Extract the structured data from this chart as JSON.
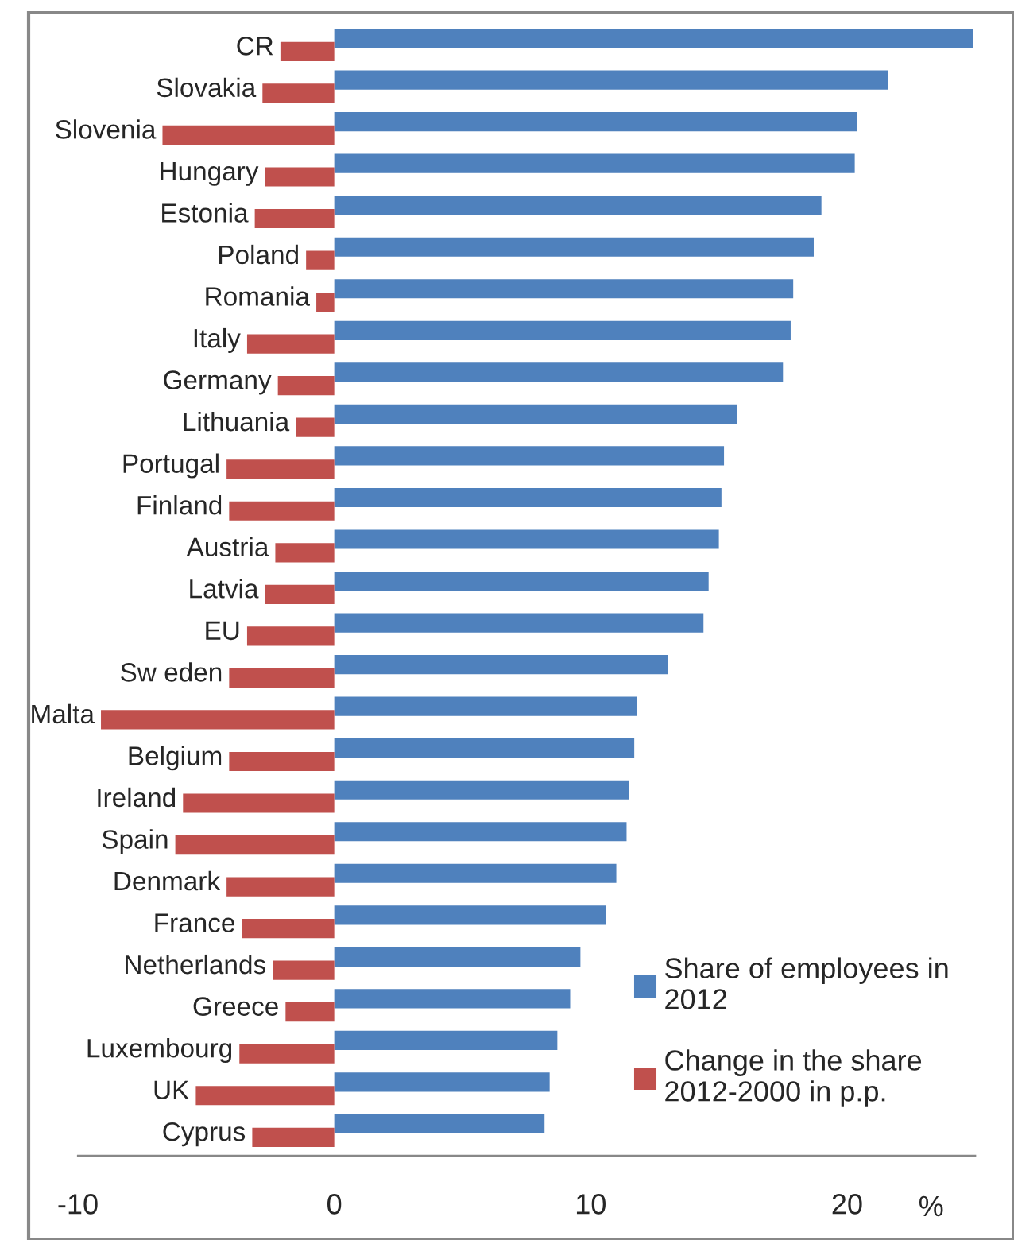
{
  "chart_data": {
    "type": "bar",
    "orientation": "horizontal",
    "xlabel": "%",
    "categories": [
      "CR",
      "Slovakia",
      "Slovenia",
      "Hungary",
      "Estonia",
      "Poland",
      "Romania",
      "Italy",
      "Germany",
      "Lithuania",
      "Portugal",
      "Finland",
      "Austria",
      "Latvia",
      "EU",
      "Sw eden",
      "Malta",
      "Belgium",
      "Ireland",
      "Spain",
      "Denmark",
      "France",
      "Netherlands",
      "Greece",
      "Luxembourg",
      "UK",
      "Cyprus"
    ],
    "series": [
      {
        "name": "Share of employees in 2012",
        "color": "#4f81bd",
        "values": [
          24.9,
          21.6,
          20.4,
          20.3,
          19.0,
          18.7,
          17.9,
          17.8,
          17.5,
          15.7,
          15.2,
          15.1,
          15.0,
          14.6,
          14.4,
          13.0,
          11.8,
          11.7,
          11.5,
          11.4,
          11.0,
          10.6,
          9.6,
          9.2,
          8.7,
          8.4,
          8.2
        ]
      },
      {
        "name": "Change in the share 2012-2000 in p.p.",
        "color": "#c0504d",
        "values": [
          -2.1,
          -2.8,
          -6.7,
          -2.7,
          -3.1,
          -1.1,
          -0.7,
          -3.4,
          -2.2,
          -1.5,
          -4.2,
          -4.1,
          -2.3,
          -2.7,
          -3.4,
          -4.1,
          -9.1,
          -4.1,
          -5.9,
          -6.2,
          -4.2,
          -3.6,
          -2.4,
          -1.9,
          -3.7,
          -5.4,
          -3.2
        ]
      }
    ],
    "xlim": [
      -10,
      25
    ],
    "xticks": [
      -10,
      0,
      10,
      20
    ],
    "grid": false,
    "legend": "bottom right"
  }
}
